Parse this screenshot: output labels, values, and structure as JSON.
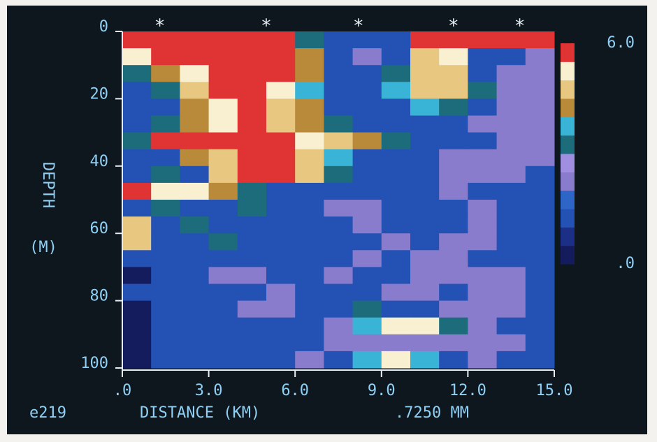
{
  "chart_data": {
    "type": "heatmap",
    "xbins": [
      0,
      1,
      2,
      3,
      4,
      5,
      6,
      7,
      8,
      9,
      10,
      11,
      12,
      13,
      14,
      15
    ],
    "ybins": [
      0,
      5,
      10,
      15,
      20,
      25,
      30,
      35,
      40,
      45,
      50,
      55,
      60,
      65,
      70,
      75,
      80,
      85,
      90,
      95,
      100
    ],
    "values": [
      [
        5.8,
        6,
        6,
        6,
        6,
        6,
        3,
        1,
        1,
        1,
        6,
        6,
        6,
        6,
        6
      ],
      [
        5,
        5.8,
        6,
        6,
        6,
        6,
        4,
        1,
        2,
        1,
        4.5,
        5,
        1,
        1,
        2
      ],
      [
        3,
        4,
        5,
        6,
        6,
        6,
        4,
        1,
        1,
        3,
        4.5,
        4.5,
        1,
        2,
        2
      ],
      [
        1,
        3,
        4.5,
        5.5,
        6,
        5,
        3.5,
        1,
        1,
        3.5,
        4.5,
        4.5,
        3,
        2,
        2
      ],
      [
        1,
        1,
        4,
        5,
        5.5,
        4.5,
        4,
        1,
        1,
        1,
        3.5,
        3,
        1,
        2,
        2
      ],
      [
        1,
        3,
        4,
        5,
        6,
        4.5,
        4,
        3,
        1,
        1,
        1,
        1,
        2,
        2,
        2
      ],
      [
        3,
        5.5,
        6,
        6,
        6,
        6,
        5,
        4.5,
        4,
        3,
        1,
        1,
        1,
        2,
        2
      ],
      [
        1,
        1,
        4,
        4.5,
        5.5,
        5.5,
        4.5,
        3.5,
        1,
        1,
        1,
        2,
        2,
        2,
        2
      ],
      [
        1,
        3,
        1,
        4.5,
        5.5,
        6,
        4.5,
        3,
        1,
        1,
        1,
        2,
        2,
        2,
        1
      ],
      [
        5.5,
        5,
        5,
        4,
        3,
        1,
        1,
        1,
        1,
        1,
        1,
        2,
        1,
        1,
        1
      ],
      [
        1,
        3,
        1,
        1,
        3,
        1,
        1,
        2,
        2,
        1,
        1,
        1,
        2,
        1,
        1
      ],
      [
        4.5,
        1,
        3,
        1,
        1,
        1,
        1,
        1,
        2,
        1,
        1,
        1,
        2,
        1,
        1
      ],
      [
        4.5,
        1,
        1,
        3,
        1,
        1,
        1,
        1,
        1,
        2,
        1,
        2,
        2,
        1,
        1
      ],
      [
        1,
        1,
        1,
        1,
        1,
        1,
        1,
        1,
        2,
        1,
        2,
        2,
        1,
        1,
        1
      ],
      [
        0,
        1,
        1,
        2,
        2,
        1,
        1,
        2,
        1,
        1,
        2,
        2,
        2,
        2,
        1
      ],
      [
        1,
        1,
        1,
        1,
        1,
        2,
        1,
        1,
        1,
        2,
        2,
        1,
        2,
        2,
        1
      ],
      [
        0,
        1,
        1,
        1,
        2,
        2,
        1,
        1,
        3,
        1,
        1,
        2,
        2,
        2,
        1
      ],
      [
        0,
        1,
        1,
        1,
        1,
        1,
        1,
        2,
        3.5,
        5,
        5,
        3,
        2,
        1,
        1
      ],
      [
        0,
        1,
        1,
        1,
        1,
        1,
        1,
        2,
        2,
        2,
        2,
        2,
        2,
        2,
        1
      ],
      [
        0,
        1,
        1,
        1,
        1,
        1,
        2,
        1,
        3.5,
        5,
        3.5,
        1,
        2,
        1,
        1
      ]
    ],
    "xlim": [
      0,
      15
    ],
    "xticks": [
      {
        "value": 0,
        "label": ".0"
      },
      {
        "value": 3,
        "label": "3.0"
      },
      {
        "value": 6,
        "label": "6.0"
      },
      {
        "value": 9,
        "label": "9.0"
      },
      {
        "value": 12,
        "label": "12.0"
      },
      {
        "value": 15,
        "label": "15.0"
      }
    ],
    "ylim": [
      0,
      100
    ],
    "y_inverted": true,
    "yticks": [
      0,
      20,
      40,
      60,
      80,
      100
    ],
    "zlim": [
      0,
      6
    ],
    "zticks": [
      {
        "value": 6,
        "label": "6.0"
      },
      {
        "value": 0,
        "label": ".0"
      }
    ],
    "colors": [
      "#141c5e",
      "#1c2f86",
      "#2452b4",
      "#2e66c8",
      "#8a7ccc",
      "#a08ee0",
      "#1d6c7c",
      "#3ab4d6",
      "#b88a3a",
      "#e8c880",
      "#f8f0d0",
      "#e03434"
    ],
    "markers": [
      {
        "x": 1.3,
        "label": "*"
      },
      {
        "x": 5.0,
        "label": "*"
      },
      {
        "x": 8.2,
        "label": "*"
      },
      {
        "x": 11.5,
        "label": "*"
      },
      {
        "x": 13.8,
        "label": "*"
      }
    ],
    "ylabel": "DEPTH",
    "yunit": "(M)",
    "run_id": "e219",
    "xlabel": "DISTANCE (KM)",
    "note": ".7250 MM"
  }
}
